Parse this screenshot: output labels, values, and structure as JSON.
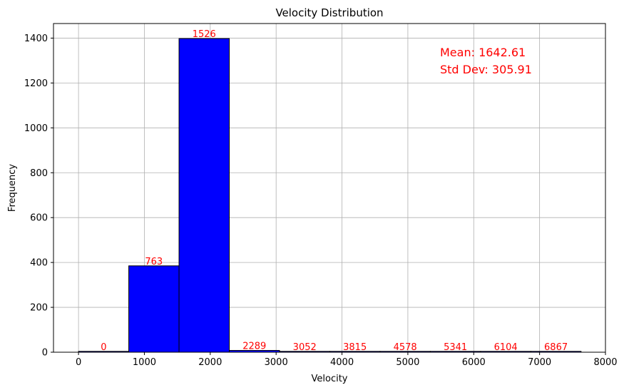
{
  "chart_data": {
    "type": "bar",
    "title": "Velocity Distribution",
    "xlabel": "Velocity",
    "ylabel": "Frequency",
    "xlim": [
      -380,
      8000
    ],
    "ylim": [
      0,
      1465
    ],
    "xticks": [
      0,
      1000,
      2000,
      3000,
      4000,
      5000,
      6000,
      7000,
      8000
    ],
    "yticks": [
      0,
      200,
      400,
      600,
      800,
      1000,
      1200,
      1400
    ],
    "grid": true,
    "bar_color": "#0000ff",
    "edge_color": "#000000",
    "label_color": "#ff0000",
    "bins": [
      {
        "start": 0,
        "end": 763,
        "value": 2,
        "label": "0"
      },
      {
        "start": 763,
        "end": 1526,
        "value": 385,
        "label": "763"
      },
      {
        "start": 1526,
        "end": 2289,
        "value": 1398,
        "label": "1526"
      },
      {
        "start": 2289,
        "end": 3052,
        "value": 8,
        "label": "2289"
      },
      {
        "start": 3052,
        "end": 3815,
        "value": 2,
        "label": "3052"
      },
      {
        "start": 3815,
        "end": 4578,
        "value": 0,
        "label": "3815"
      },
      {
        "start": 4578,
        "end": 5341,
        "value": 0,
        "label": "4578"
      },
      {
        "start": 5341,
        "end": 6104,
        "value": 1,
        "label": "5341"
      },
      {
        "start": 6104,
        "end": 6867,
        "value": 0,
        "label": "6104"
      },
      {
        "start": 6867,
        "end": 7630,
        "value": 1,
        "label": "6867"
      }
    ],
    "annotations": [
      "Mean: 1642.61",
      "Std Dev: 305.91"
    ]
  }
}
